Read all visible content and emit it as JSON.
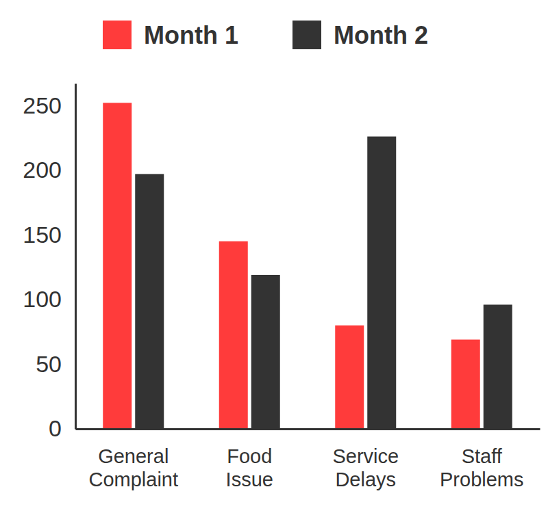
{
  "chart_data": {
    "type": "bar",
    "categories": [
      "General Complaint",
      "Food Issue",
      "Service Delays",
      "Staff Problems"
    ],
    "series": [
      {
        "name": "Month 1",
        "color": "#ff3b3b",
        "values": [
          252,
          145,
          80,
          69
        ]
      },
      {
        "name": "Month 2",
        "color": "#333333",
        "values": [
          197,
          119,
          226,
          96
        ]
      }
    ],
    "ylim": [
      0,
      267
    ],
    "yticks": [
      0,
      50,
      100,
      150,
      200,
      250
    ],
    "legend": "top"
  }
}
